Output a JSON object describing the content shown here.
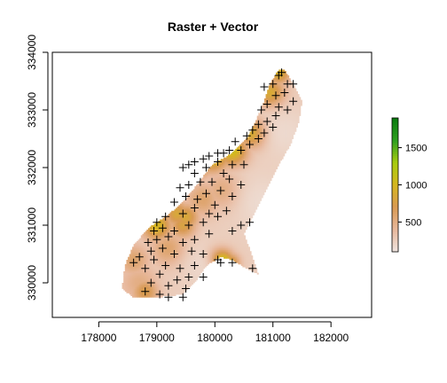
{
  "chart_data": {
    "type": "heatmap",
    "title": "Raster + Vector",
    "xlabel": "",
    "ylabel": "",
    "xlim": [
      177200,
      182700
    ],
    "ylim": [
      329400,
      334000
    ],
    "x_ticks": [
      178000,
      179000,
      180000,
      181000,
      182000
    ],
    "x_tick_labels": [
      "178000",
      "179000",
      "180000",
      "181000",
      "182000"
    ],
    "y_ticks": [
      330000,
      331000,
      332000,
      333000,
      334000
    ],
    "y_tick_labels": [
      "330000",
      "331000",
      "332000",
      "333000",
      "334000"
    ],
    "grid": false,
    "legend": {
      "placement": "right",
      "min": 100,
      "max": 1900,
      "ticks": [
        500,
        1000,
        1500
      ],
      "tick_labels": [
        "500",
        "1000",
        "1500"
      ],
      "colors": [
        "#efe5e0",
        "#e8b89c",
        "#d99a54",
        "#d6b620",
        "#a8cc10",
        "#2ea020",
        "#0a7a10"
      ]
    },
    "raster": {
      "base_value": 260,
      "outline": [
        [
          178400,
          329900
        ],
        [
          178450,
          330300
        ],
        [
          178600,
          330650
        ],
        [
          178850,
          330950
        ],
        [
          179150,
          331150
        ],
        [
          179400,
          331350
        ],
        [
          179650,
          331650
        ],
        [
          179950,
          332050
        ],
        [
          180300,
          332250
        ],
        [
          180550,
          332500
        ],
        [
          180700,
          332800
        ],
        [
          180850,
          333150
        ],
        [
          180950,
          333450
        ],
        [
          181100,
          333700
        ],
        [
          181200,
          333700
        ],
        [
          181350,
          333450
        ],
        [
          181500,
          333150
        ],
        [
          181450,
          332800
        ],
        [
          181300,
          332400
        ],
        [
          181100,
          332050
        ],
        [
          180900,
          331650
        ],
        [
          180700,
          331250
        ],
        [
          180500,
          330850
        ],
        [
          180650,
          330450
        ],
        [
          180750,
          330150
        ],
        [
          180550,
          330250
        ],
        [
          180300,
          330400
        ],
        [
          180100,
          330450
        ],
        [
          179850,
          330300
        ],
        [
          179650,
          330000
        ],
        [
          179450,
          329800
        ],
        [
          179000,
          329750
        ],
        [
          178600,
          329750
        ]
      ],
      "hotspots": [
        {
          "x": 180100,
          "y": 330350,
          "value": 1700,
          "radius": 140
        },
        {
          "x": 180250,
          "y": 330350,
          "value": 1050,
          "radius": 110
        },
        {
          "x": 179950,
          "y": 332250,
          "value": 1250,
          "radius": 200
        },
        {
          "x": 179700,
          "y": 332100,
          "value": 1050,
          "radius": 170
        },
        {
          "x": 180300,
          "y": 332300,
          "value": 1100,
          "radius": 180
        },
        {
          "x": 180650,
          "y": 332600,
          "value": 1000,
          "radius": 170
        },
        {
          "x": 180950,
          "y": 333300,
          "value": 900,
          "radius": 170
        },
        {
          "x": 181100,
          "y": 333650,
          "value": 950,
          "radius": 130
        },
        {
          "x": 179000,
          "y": 331000,
          "value": 1000,
          "radius": 170
        },
        {
          "x": 179350,
          "y": 331200,
          "value": 850,
          "radius": 150
        },
        {
          "x": 179500,
          "y": 331150,
          "value": 850,
          "radius": 150
        },
        {
          "x": 179450,
          "y": 331000,
          "value": 800,
          "radius": 150
        },
        {
          "x": 178800,
          "y": 329850,
          "value": 750,
          "radius": 150
        },
        {
          "x": 178600,
          "y": 330400,
          "value": 600,
          "radius": 180
        },
        {
          "x": 179200,
          "y": 330600,
          "value": 600,
          "radius": 200
        },
        {
          "x": 179800,
          "y": 331450,
          "value": 600,
          "radius": 200
        },
        {
          "x": 180150,
          "y": 331600,
          "value": 550,
          "radius": 220
        },
        {
          "x": 178700,
          "y": 330000,
          "value": 500,
          "radius": 220
        }
      ],
      "cold_zones": [
        {
          "x": 180800,
          "y": 331400,
          "value": 150,
          "radius": 350
        },
        {
          "x": 181200,
          "y": 332600,
          "value": 160,
          "radius": 300
        },
        {
          "x": 179800,
          "y": 330300,
          "value": 170,
          "radius": 250
        }
      ]
    },
    "points": [
      [
        181100,
        333600
      ],
      [
        181150,
        333650
      ],
      [
        181000,
        333450
      ],
      [
        181250,
        333450
      ],
      [
        181350,
        333450
      ],
      [
        180850,
        333400
      ],
      [
        181050,
        333250
      ],
      [
        181200,
        333300
      ],
      [
        181350,
        333150
      ],
      [
        180900,
        333100
      ],
      [
        181100,
        333050
      ],
      [
        181250,
        333000
      ],
      [
        180800,
        333000
      ],
      [
        181050,
        332900
      ],
      [
        180900,
        332800
      ],
      [
        180750,
        332750
      ],
      [
        181000,
        332700
      ],
      [
        180650,
        332650
      ],
      [
        180850,
        332600
      ],
      [
        180550,
        332550
      ],
      [
        180750,
        332500
      ],
      [
        180350,
        332450
      ],
      [
        180600,
        332400
      ],
      [
        180450,
        332300
      ],
      [
        180250,
        332300
      ],
      [
        180150,
        332250
      ],
      [
        180050,
        332250
      ],
      [
        179900,
        332200
      ],
      [
        179800,
        332150
      ],
      [
        179650,
        332100
      ],
      [
        179550,
        332050
      ],
      [
        179450,
        332000
      ],
      [
        180300,
        332050
      ],
      [
        180050,
        332100
      ],
      [
        179850,
        332000
      ],
      [
        179650,
        331900
      ],
      [
        180500,
        332050
      ],
      [
        180150,
        331900
      ],
      [
        180250,
        331800
      ],
      [
        179950,
        331750
      ],
      [
        179750,
        331750
      ],
      [
        179550,
        331700
      ],
      [
        179400,
        331650
      ],
      [
        180450,
        331700
      ],
      [
        180100,
        331600
      ],
      [
        179850,
        331550
      ],
      [
        179700,
        331450
      ],
      [
        179500,
        331500
      ],
      [
        179300,
        331400
      ],
      [
        180300,
        331500
      ],
      [
        180000,
        331350
      ],
      [
        179650,
        331300
      ],
      [
        180200,
        331250
      ],
      [
        179900,
        331200
      ],
      [
        179450,
        331200
      ],
      [
        179150,
        331150
      ],
      [
        179000,
        331050
      ],
      [
        179100,
        330950
      ],
      [
        178950,
        330900
      ],
      [
        180050,
        331150
      ],
      [
        179800,
        331050
      ],
      [
        179550,
        331000
      ],
      [
        179300,
        330900
      ],
      [
        179900,
        330850
      ],
      [
        179650,
        330750
      ],
      [
        180300,
        330900
      ],
      [
        180450,
        331000
      ],
      [
        180600,
        331050
      ],
      [
        179450,
        330700
      ],
      [
        179200,
        330800
      ],
      [
        179000,
        330750
      ],
      [
        178850,
        330700
      ],
      [
        179100,
        330600
      ],
      [
        179300,
        330500
      ],
      [
        179600,
        330550
      ],
      [
        179800,
        330500
      ],
      [
        178900,
        330550
      ],
      [
        178700,
        330450
      ],
      [
        178600,
        330350
      ],
      [
        178950,
        330400
      ],
      [
        179150,
        330300
      ],
      [
        179400,
        330250
      ],
      [
        179650,
        330300
      ],
      [
        178800,
        330250
      ],
      [
        179050,
        330150
      ],
      [
        179350,
        330050
      ],
      [
        179550,
        330100
      ],
      [
        179800,
        330100
      ],
      [
        178900,
        330000
      ],
      [
        179200,
        329950
      ],
      [
        179500,
        329900
      ],
      [
        178800,
        329850
      ],
      [
        179050,
        329800
      ],
      [
        179200,
        329750
      ],
      [
        179450,
        329750
      ],
      [
        180100,
        330350
      ],
      [
        180300,
        330350
      ],
      [
        180650,
        330250
      ],
      [
        180050,
        330400
      ]
    ]
  }
}
